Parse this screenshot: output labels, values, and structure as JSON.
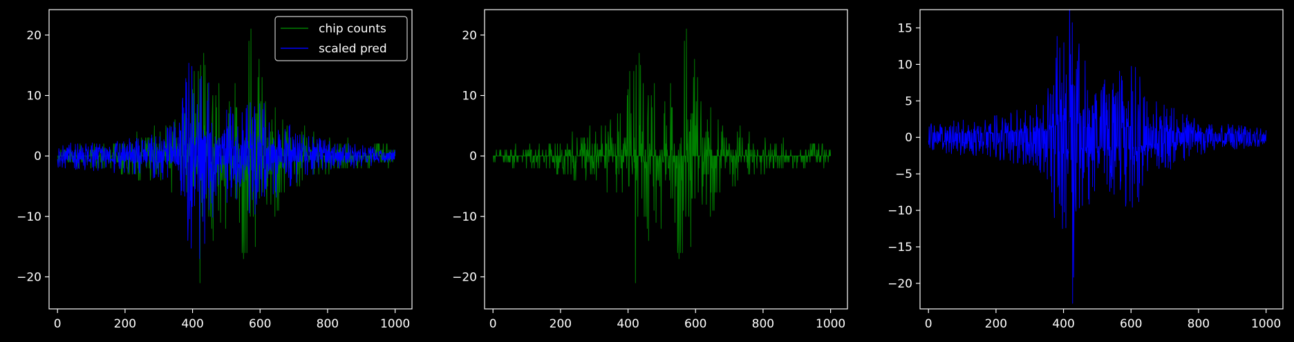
{
  "chart_data": [
    {
      "type": "line",
      "title": "",
      "xlabel": "",
      "ylabel": "",
      "xlim": [
        -25,
        1050
      ],
      "ylim": [
        -25.3,
        24.2
      ],
      "xticks": [
        0,
        200,
        400,
        600,
        800,
        1000
      ],
      "yticks": [
        -20,
        -10,
        0,
        10,
        20
      ],
      "grid": false,
      "legend": "top-right",
      "series": [
        {
          "name": "chip counts",
          "color": "#008000",
          "kind": "counts",
          "envelope": [
            [
              0,
              1
            ],
            [
              100,
              2
            ],
            [
              200,
              3
            ],
            [
              300,
              5
            ],
            [
              350,
              8
            ],
            [
              400,
              12
            ],
            [
              420,
              23
            ],
            [
              450,
              15
            ],
            [
              500,
              13
            ],
            [
              540,
              16
            ],
            [
              570,
              22
            ],
            [
              600,
              16
            ],
            [
              650,
              10
            ],
            [
              700,
              6
            ],
            [
              800,
              3
            ],
            [
              900,
              3
            ],
            [
              1000,
              2
            ]
          ]
        },
        {
          "name": "scaled pred",
          "color": "#0000ff",
          "kind": "pred",
          "envelope": [
            [
              0,
              1.5
            ],
            [
              100,
              2
            ],
            [
              200,
              2.5
            ],
            [
              300,
              3.5
            ],
            [
              350,
              5
            ],
            [
              395,
              16
            ],
            [
              410,
              10
            ],
            [
              425,
              22
            ],
            [
              450,
              10
            ],
            [
              500,
              8
            ],
            [
              550,
              7
            ],
            [
              595,
              10
            ],
            [
              650,
              6
            ],
            [
              700,
              4
            ],
            [
              800,
              2
            ],
            [
              900,
              1.5
            ],
            [
              1000,
              0.8
            ]
          ]
        }
      ]
    },
    {
      "type": "line",
      "title": "",
      "xlabel": "",
      "ylabel": "",
      "xlim": [
        -25,
        1050
      ],
      "ylim": [
        -25.3,
        24.2
      ],
      "xticks": [
        0,
        200,
        400,
        600,
        800,
        1000
      ],
      "yticks": [
        -20,
        -10,
        0,
        10,
        20
      ],
      "grid": false,
      "series": [
        {
          "color": "#008000",
          "kind": "counts",
          "envelope": [
            [
              0,
              1
            ],
            [
              100,
              2
            ],
            [
              200,
              3
            ],
            [
              300,
              5
            ],
            [
              350,
              8
            ],
            [
              400,
              12
            ],
            [
              420,
              23
            ],
            [
              450,
              15
            ],
            [
              500,
              13
            ],
            [
              540,
              16
            ],
            [
              570,
              22
            ],
            [
              600,
              16
            ],
            [
              650,
              10
            ],
            [
              700,
              6
            ],
            [
              800,
              3
            ],
            [
              900,
              3
            ],
            [
              1000,
              2
            ]
          ]
        }
      ]
    },
    {
      "type": "line",
      "title": "",
      "xlabel": "",
      "ylabel": "",
      "xlim": [
        -25,
        1050
      ],
      "ylim": [
        -23.5,
        17.5
      ],
      "xticks": [
        0,
        200,
        400,
        600,
        800,
        1000
      ],
      "yticks": [
        -20,
        -15,
        -10,
        -5,
        0,
        5,
        10,
        15
      ],
      "grid": false,
      "series": [
        {
          "color": "#0000ff",
          "kind": "pred",
          "envelope": [
            [
              0,
              1.5
            ],
            [
              100,
              2
            ],
            [
              200,
              2.5
            ],
            [
              300,
              3.5
            ],
            [
              350,
              5
            ],
            [
              395,
              16
            ],
            [
              410,
              10
            ],
            [
              425,
              22
            ],
            [
              450,
              10
            ],
            [
              500,
              8
            ],
            [
              550,
              7
            ],
            [
              595,
              10
            ],
            [
              650,
              6
            ],
            [
              700,
              4
            ],
            [
              800,
              2
            ],
            [
              900,
              1.5
            ],
            [
              1000,
              0.8
            ]
          ]
        }
      ]
    }
  ]
}
